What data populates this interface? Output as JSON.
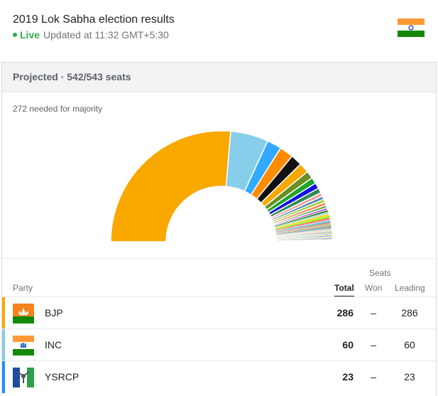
{
  "header": {
    "title": "2019 Lok Sabha election results",
    "live_label": "Live",
    "updated": "Updated at 11:32 GMT+5:30"
  },
  "summary": {
    "projected": "Projected · 542/543 seats",
    "majority_note": "272 needed for majority"
  },
  "table": {
    "group_header": "Seats",
    "columns": {
      "party": "Party",
      "total": "Total",
      "won": "Won",
      "leading": "Leading"
    },
    "rows": [
      {
        "party": "BJP",
        "total": "286",
        "won": "–",
        "leading": "286",
        "color": "#f9a800"
      },
      {
        "party": "INC",
        "total": "60",
        "won": "–",
        "leading": "60",
        "color": "#87ceeb"
      },
      {
        "party": "YSRCP",
        "total": "23",
        "won": "–",
        "leading": "23",
        "color": "#1e90ff"
      }
    ]
  },
  "chart_data": {
    "type": "pie",
    "total_seats": 543,
    "series": [
      {
        "name": "BJP",
        "value": 286,
        "color": "#f9a800"
      },
      {
        "name": "INC",
        "value": 60,
        "color": "#87ceeb"
      },
      {
        "name": "YSRCP",
        "value": 23,
        "color": "#33aaff"
      },
      {
        "value": 22,
        "color": "#ff8c00"
      },
      {
        "value": 18,
        "color": "#111111"
      },
      {
        "value": 16,
        "color": "#f9a800"
      },
      {
        "value": 12,
        "color": "#6b8e23"
      },
      {
        "value": 10,
        "color": "#1fa52b"
      },
      {
        "value": 9,
        "color": "#1010e0"
      },
      {
        "value": 8,
        "color": "#2e8b57"
      },
      {
        "value": 6,
        "color": "#f0a0a0"
      },
      {
        "value": 5,
        "color": "#4682b4"
      },
      {
        "value": 5,
        "color": "#9acd32"
      },
      {
        "value": 5,
        "color": "#ff7f50"
      },
      {
        "value": 4,
        "color": "#48a048"
      },
      {
        "value": 4,
        "color": "#ba55d3"
      },
      {
        "value": 3,
        "color": "#228b22"
      },
      {
        "value": 3,
        "color": "#add8e6"
      },
      {
        "value": 3,
        "color": "#ffd700"
      },
      {
        "value": 3,
        "color": "#7cfc00"
      },
      {
        "value": 3,
        "color": "#ff6347"
      },
      {
        "value": 2,
        "color": "#dda0dd"
      },
      {
        "value": 2,
        "color": "#00ced1"
      },
      {
        "value": 2,
        "color": "#cd5c5c"
      },
      {
        "value": 2,
        "color": "#8fbc8f"
      },
      {
        "value": 2,
        "color": "#daa520"
      },
      {
        "value": 2,
        "color": "#9370db"
      },
      {
        "value": 2,
        "color": "#3cb371"
      },
      {
        "value": 1,
        "color": "#ff69b4"
      },
      {
        "value": 1,
        "color": "#66cdaa"
      },
      {
        "value": 1,
        "color": "#f4a460"
      },
      {
        "value": 1,
        "color": "#c0c0ff"
      },
      {
        "value": 1,
        "color": "#b0e060"
      },
      {
        "value": 1,
        "color": "#ff4500"
      },
      {
        "value": 1,
        "color": "#20b2aa"
      },
      {
        "value": 1,
        "color": "#d2b48c"
      },
      {
        "value": 1,
        "color": "#6495ed"
      },
      {
        "value": 1,
        "color": "#90ee90"
      },
      {
        "value": 1,
        "color": "#ffb6c1"
      },
      {
        "value": 1,
        "color": "#8b4513"
      },
      {
        "value": 1,
        "color": "#00bfff"
      },
      {
        "value": 1,
        "color": "#e9967a"
      },
      {
        "value": 1,
        "color": "#adff2f"
      },
      {
        "value": 1,
        "color": "#7b68ee"
      },
      {
        "value": 1,
        "color": "#777777"
      }
    ]
  }
}
